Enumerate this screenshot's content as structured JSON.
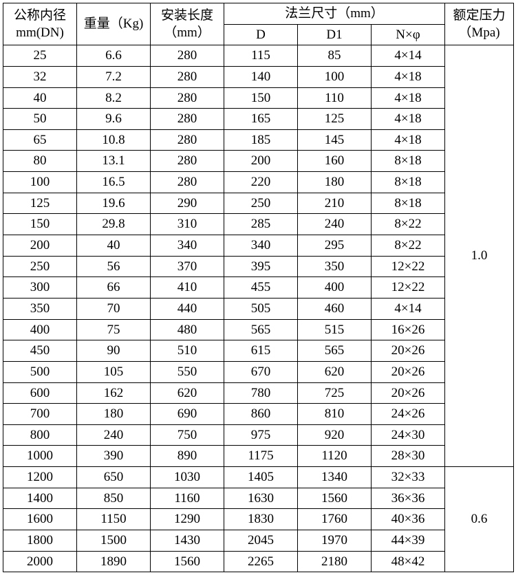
{
  "headers": {
    "dn_line1": "公称内径",
    "dn_line2": "mm(DN)",
    "weight": "重量（Kg)",
    "length_line1": "安装长度",
    "length_line2": "（mm）",
    "flange": "法兰尺寸（mm）",
    "d": "D",
    "d1": "D1",
    "nphi": "N×φ",
    "pressure_line1": "额定压力",
    "pressure_line2": "（Mpa)"
  },
  "groups": [
    {
      "pressure": "1.0",
      "rows": [
        {
          "dn": "25",
          "w": "6.6",
          "len": "280",
          "d": "115",
          "d1": "85",
          "n": "4×14"
        },
        {
          "dn": "32",
          "w": "7.2",
          "len": "280",
          "d": "140",
          "d1": "100",
          "n": "4×18"
        },
        {
          "dn": "40",
          "w": "8.2",
          "len": "280",
          "d": "150",
          "d1": "110",
          "n": "4×18"
        },
        {
          "dn": "50",
          "w": "9.6",
          "len": "280",
          "d": "165",
          "d1": "125",
          "n": "4×18"
        },
        {
          "dn": "65",
          "w": "10.8",
          "len": "280",
          "d": "185",
          "d1": "145",
          "n": "4×18"
        },
        {
          "dn": "80",
          "w": "13.1",
          "len": "280",
          "d": "200",
          "d1": "160",
          "n": "8×18"
        },
        {
          "dn": "100",
          "w": "16.5",
          "len": "280",
          "d": "220",
          "d1": "180",
          "n": "8×18"
        },
        {
          "dn": "125",
          "w": "19.6",
          "len": "290",
          "d": "250",
          "d1": "210",
          "n": "8×18"
        },
        {
          "dn": "150",
          "w": "29.8",
          "len": "310",
          "d": "285",
          "d1": "240",
          "n": "8×22"
        },
        {
          "dn": "200",
          "w": "40",
          "len": "340",
          "d": "340",
          "d1": "295",
          "n": "8×22"
        },
        {
          "dn": "250",
          "w": "56",
          "len": "370",
          "d": "395",
          "d1": "350",
          "n": "12×22"
        },
        {
          "dn": "300",
          "w": "66",
          "len": "410",
          "d": "455",
          "d1": "400",
          "n": "12×22"
        },
        {
          "dn": "350",
          "w": "70",
          "len": "440",
          "d": "505",
          "d1": "460",
          "n": "4×14"
        },
        {
          "dn": "400",
          "w": "75",
          "len": "480",
          "d": "565",
          "d1": "515",
          "n": "16×26"
        },
        {
          "dn": "450",
          "w": "90",
          "len": "510",
          "d": "615",
          "d1": "565",
          "n": "20×26"
        },
        {
          "dn": "500",
          "w": "105",
          "len": "550",
          "d": "670",
          "d1": "620",
          "n": "20×26"
        },
        {
          "dn": "600",
          "w": "162",
          "len": "620",
          "d": "780",
          "d1": "725",
          "n": "20×26"
        },
        {
          "dn": "700",
          "w": "180",
          "len": "690",
          "d": "860",
          "d1": "810",
          "n": "24×26"
        },
        {
          "dn": "800",
          "w": "240",
          "len": "750",
          "d": "975",
          "d1": "920",
          "n": "24×30"
        },
        {
          "dn": "1000",
          "w": "390",
          "len": "890",
          "d": "1175",
          "d1": "1120",
          "n": "28×30"
        }
      ]
    },
    {
      "pressure": "0.6",
      "rows": [
        {
          "dn": "1200",
          "w": "650",
          "len": "1030",
          "d": "1405",
          "d1": "1340",
          "n": "32×33"
        },
        {
          "dn": "1400",
          "w": "850",
          "len": "1160",
          "d": "1630",
          "d1": "1560",
          "n": "36×36"
        },
        {
          "dn": "1600",
          "w": "1150",
          "len": "1290",
          "d": "1830",
          "d1": "1760",
          "n": "40×36"
        },
        {
          "dn": "1800",
          "w": "1500",
          "len": "1430",
          "d": "2045",
          "d1": "1970",
          "n": "44×39"
        },
        {
          "dn": "2000",
          "w": "1890",
          "len": "1560",
          "d": "2265",
          "d1": "2180",
          "n": "48×42"
        }
      ]
    }
  ],
  "col_widths": {
    "dn": 107,
    "weight": 107,
    "length": 107,
    "d": 107,
    "d1": 107,
    "nphi": 107,
    "pressure": 100
  }
}
